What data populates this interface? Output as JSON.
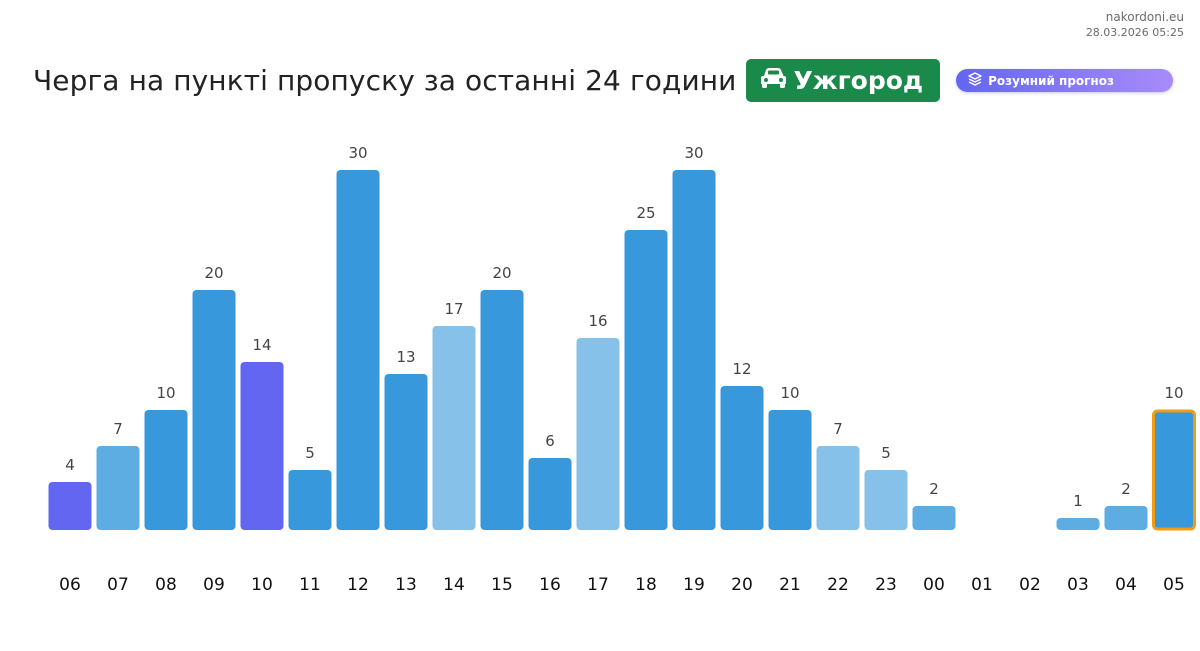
{
  "site": {
    "name": "nakordoni.eu",
    "timestamp": "28.03.2026 05:25"
  },
  "header": {
    "title": "Черга на пункті пропуску за останні 24 години",
    "location": "Ужгород",
    "location_icon": "car-icon",
    "forecast_label": "Розумний прогноз",
    "forecast_icon": "layers-icon"
  },
  "colors": {
    "badge_green": "#1a8a4a",
    "bar_blue": "#3798db",
    "bar_mid": "#5dade2",
    "bar_light": "#85c1e9",
    "bar_purple": "#6366f1",
    "highlight_border": "#f39c12",
    "pill_start": "#6366f1",
    "pill_end": "#a78bfa",
    "value_label": "#444444",
    "hour_label": "#111111"
  },
  "chart_data": {
    "type": "bar",
    "categories": [
      "06",
      "07",
      "08",
      "09",
      "10",
      "11",
      "12",
      "13",
      "14",
      "15",
      "16",
      "17",
      "18",
      "19",
      "20",
      "21",
      "22",
      "23",
      "00",
      "01",
      "02",
      "03",
      "04",
      "05"
    ],
    "values": [
      4,
      7,
      10,
      20,
      14,
      5,
      30,
      13,
      17,
      20,
      6,
      16,
      25,
      30,
      12,
      10,
      7,
      5,
      2,
      null,
      null,
      1,
      2,
      10
    ],
    "bar_colors": [
      "#6366f1",
      "#5dade2",
      "#3798db",
      "#3798db",
      "#6366f1",
      "#3798db",
      "#3798db",
      "#3798db",
      "#85c1e9",
      "#3798db",
      "#3798db",
      "#85c1e9",
      "#3798db",
      "#3798db",
      "#3798db",
      "#3798db",
      "#85c1e9",
      "#85c1e9",
      "#5dade2",
      null,
      null,
      "#5dade2",
      "#5dade2",
      "#3798db"
    ],
    "highlight_category": "05",
    "ylim": [
      0,
      30
    ],
    "grid": false,
    "legend": "none",
    "xlabel": "",
    "ylabel": ""
  }
}
